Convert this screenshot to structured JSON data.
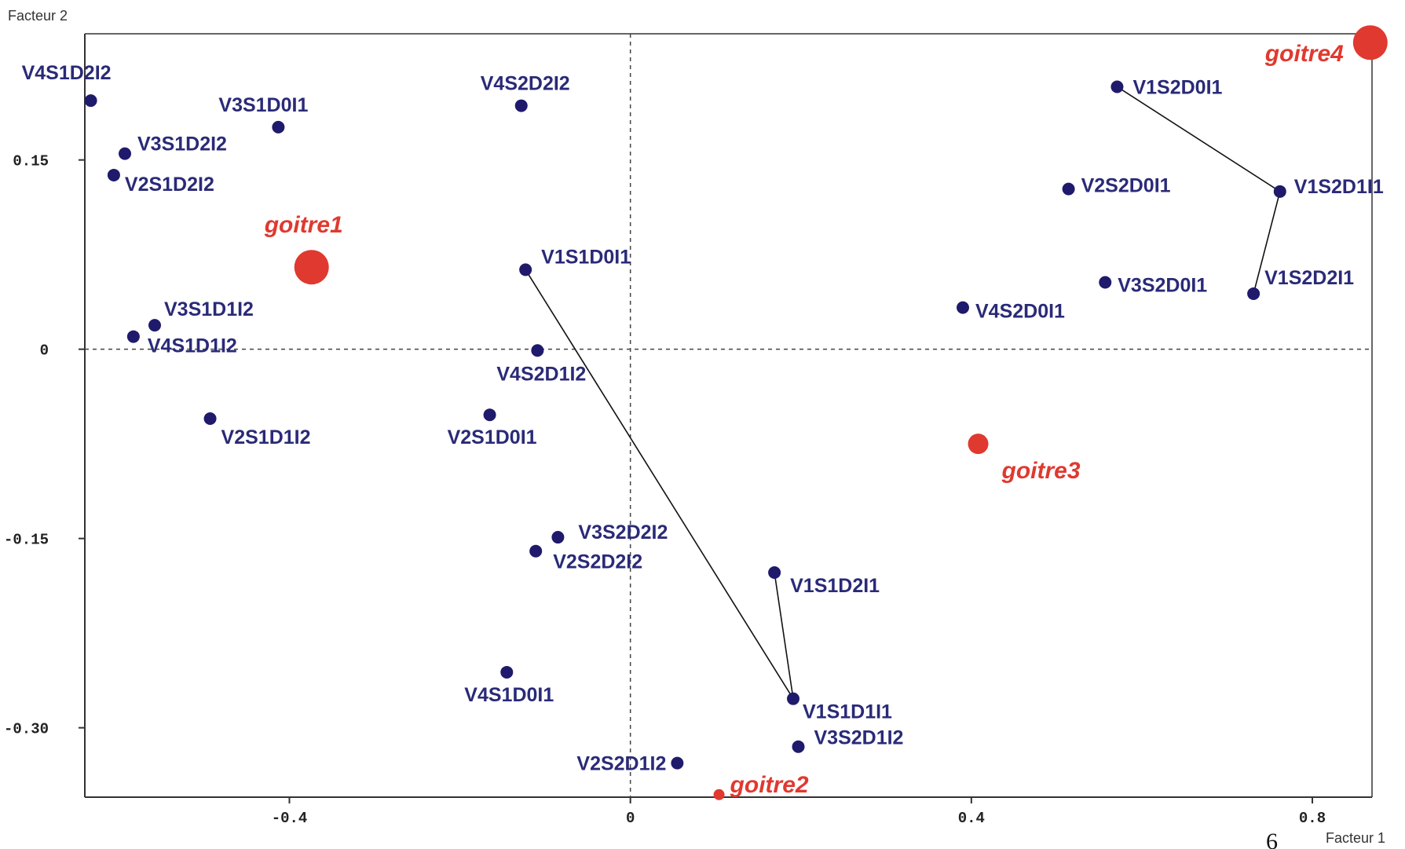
{
  "chart_data": {
    "type": "scatter",
    "xlabel": "Facteur 1",
    "ylabel": "Facteur 2",
    "xlim": [
      -0.64,
      0.87
    ],
    "ylim": [
      -0.355,
      0.25
    ],
    "x_ticks": [
      {
        "value": -0.4,
        "label": "-0.4"
      },
      {
        "value": 0,
        "label": "0"
      },
      {
        "value": 0.4,
        "label": "0.4"
      },
      {
        "value": 0.8,
        "label": "0.8"
      }
    ],
    "y_ticks": [
      {
        "value": 0.15,
        "label": "0.15"
      },
      {
        "value": 0,
        "label": "0"
      },
      {
        "value": -0.15,
        "label": "-0.15"
      },
      {
        "value": -0.3,
        "label": "-0.30"
      }
    ],
    "reference_lines": {
      "x": 0,
      "y": 0,
      "style": "dashed"
    },
    "points": [
      {
        "label": "V4S1D2I2",
        "x": -0.633,
        "y": 0.197
      },
      {
        "label": "V3S1D0I1",
        "x": -0.413,
        "y": 0.176
      },
      {
        "label": "V3S1D2I2",
        "x": -0.593,
        "y": 0.155
      },
      {
        "label": "V2S1D2I2",
        "x": -0.606,
        "y": 0.138
      },
      {
        "label": "V4S2D2I2",
        "x": -0.128,
        "y": 0.193
      },
      {
        "label": "V1S1D0I1",
        "x": -0.123,
        "y": 0.063
      },
      {
        "label": "V3S1D1I2",
        "x": -0.558,
        "y": 0.019
      },
      {
        "label": "V4S1D1I2",
        "x": -0.583,
        "y": 0.01
      },
      {
        "label": "V4S2D1I2",
        "x": -0.109,
        "y": -0.001
      },
      {
        "label": "V2S1D1I2",
        "x": -0.493,
        "y": -0.055
      },
      {
        "label": "V2S1D0I1",
        "x": -0.165,
        "y": -0.052
      },
      {
        "label": "V3S2D2I2",
        "x": -0.085,
        "y": -0.149
      },
      {
        "label": "V2S2D2I2",
        "x": -0.111,
        "y": -0.16
      },
      {
        "label": "V1S1D2I1",
        "x": 0.169,
        "y": -0.177
      },
      {
        "label": "V4S1D0I1",
        "x": -0.145,
        "y": -0.256
      },
      {
        "label": "V1S1D1I1",
        "x": 0.191,
        "y": -0.277
      },
      {
        "label": "V3S2D1I2",
        "x": 0.197,
        "y": -0.315
      },
      {
        "label": "V2S2D1I2",
        "x": 0.055,
        "y": -0.328
      },
      {
        "label": "V1S2D0I1",
        "x": 0.571,
        "y": 0.208
      },
      {
        "label": "V2S2D0I1",
        "x": 0.514,
        "y": 0.127
      },
      {
        "label": "V1S2D1I1",
        "x": 0.762,
        "y": 0.125
      },
      {
        "label": "V3S2D0I1",
        "x": 0.557,
        "y": 0.053
      },
      {
        "label": "V1S2D2I1",
        "x": 0.731,
        "y": 0.044
      },
      {
        "label": "V4S2D0I1",
        "x": 0.39,
        "y": 0.033
      }
    ],
    "supplementary_points": [
      {
        "label": "goitre1",
        "x": -0.374,
        "y": 0.065,
        "size": "large"
      },
      {
        "label": "goitre2",
        "x": 0.104,
        "y": -0.353,
        "size": "small"
      },
      {
        "label": "goitre3",
        "x": 0.408,
        "y": -0.075,
        "size": "medium"
      },
      {
        "label": "goitre4",
        "x": 0.868,
        "y": 0.243,
        "size": "large"
      }
    ],
    "paths": [
      [
        "V1S1D0I1",
        "V1S1D1I1",
        "V1S1D2I1"
      ],
      [
        "V1S2D0I1",
        "V1S2D1I1",
        "V1S2D2I1"
      ]
    ],
    "colors": {
      "points": "#1f1a6b",
      "point_labels": "#2a2a78",
      "supplementary": "#e0392f",
      "axis": "#333333"
    }
  },
  "page_number": "6"
}
